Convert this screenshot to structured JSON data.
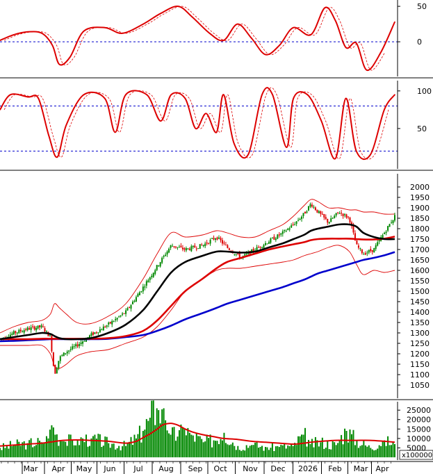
{
  "chart_data": [
    {
      "type": "line",
      "panel": "momentum-oscillator",
      "ylim": [
        -45,
        55
      ],
      "y_ticks": [
        "50",
        "0"
      ],
      "reference_lines": [
        0
      ],
      "colors": {
        "main": "#dd0000",
        "signal": "#dd0000",
        "reference": "#0000cc"
      },
      "x": [
        0,
        20,
        40,
        60,
        75,
        85,
        100,
        120,
        150,
        175,
        205,
        230,
        255,
        275,
        300,
        320,
        340,
        360,
        380,
        400,
        420,
        445,
        465,
        480,
        495,
        510,
        525,
        545,
        565
      ],
      "values": [
        2,
        10,
        14,
        12,
        -5,
        -32,
        -22,
        15,
        20,
        12,
        25,
        40,
        50,
        35,
        12,
        2,
        25,
        5,
        -18,
        -5,
        20,
        10,
        48,
        30,
        -8,
        -2,
        -40,
        -15,
        28
      ]
    },
    {
      "type": "line",
      "panel": "stochastic-oscillator",
      "ylim": [
        0,
        110
      ],
      "y_ticks": [
        "100",
        "50"
      ],
      "reference_lines": [
        80,
        20
      ],
      "colors": {
        "main": "#dd0000",
        "signal": "#dd0000",
        "reference": "#0000cc"
      },
      "x": [
        0,
        15,
        40,
        55,
        70,
        82,
        95,
        120,
        150,
        165,
        180,
        210,
        230,
        245,
        265,
        280,
        295,
        310,
        320,
        335,
        355,
        375,
        390,
        410,
        420,
        440,
        460,
        480,
        495,
        510,
        530,
        550,
        565
      ],
      "values": [
        75,
        95,
        92,
        90,
        40,
        12,
        55,
        95,
        90,
        45,
        95,
        95,
        60,
        95,
        90,
        50,
        70,
        45,
        95,
        30,
        15,
        95,
        95,
        25,
        90,
        95,
        60,
        10,
        90,
        20,
        15,
        75,
        95
      ]
    },
    {
      "type": "line",
      "panel": "price-with-moving-averages-and-bollinger-bands",
      "ylim": [
        1000,
        2050
      ],
      "y_ticks": [
        "2000",
        "1950",
        "1900",
        "1850",
        "1800",
        "1750",
        "1700",
        "1650",
        "1600",
        "1550",
        "1500",
        "1450",
        "1400",
        "1350",
        "1300",
        "1250",
        "1200",
        "1150",
        "1100",
        "1050"
      ],
      "x": [
        0,
        20,
        40,
        60,
        72,
        78,
        85,
        95,
        110,
        130,
        155,
        180,
        205,
        225,
        245,
        265,
        290,
        310,
        325,
        345,
        365,
        385,
        405,
        420,
        435,
        445,
        455,
        470,
        485,
        500,
        510,
        520,
        535,
        550,
        565
      ],
      "series": [
        {
          "role": "price",
          "color": "#008800",
          "values": [
            1270,
            1300,
            1320,
            1330,
            1280,
            1100,
            1180,
            1210,
            1240,
            1290,
            1340,
            1400,
            1520,
            1620,
            1720,
            1700,
            1720,
            1760,
            1710,
            1660,
            1700,
            1740,
            1780,
            1820,
            1870,
            1920,
            1880,
            1830,
            1880,
            1850,
            1720,
            1680,
            1700,
            1780,
            1860
          ]
        },
        {
          "role": "ma-short",
          "color": "#000000",
          "values": [
            1270,
            1280,
            1290,
            1300,
            1295,
            1285,
            1275,
            1270,
            1270,
            1275,
            1300,
            1340,
            1410,
            1500,
            1590,
            1640,
            1670,
            1690,
            1690,
            1685,
            1690,
            1710,
            1730,
            1750,
            1770,
            1790,
            1800,
            1810,
            1820,
            1820,
            1810,
            1780,
            1760,
            1750,
            1750
          ]
        },
        {
          "role": "ma-medium",
          "color": "#dd0000",
          "values": [
            1270,
            1270,
            1270,
            1272,
            1272,
            1272,
            1272,
            1272,
            1272,
            1272,
            1275,
            1285,
            1310,
            1360,
            1430,
            1500,
            1560,
            1610,
            1640,
            1660,
            1680,
            1700,
            1715,
            1725,
            1735,
            1745,
            1750,
            1752,
            1752,
            1752,
            1750,
            1748,
            1748,
            1752,
            1762
          ]
        },
        {
          "role": "ma-long",
          "color": "#0000cc",
          "values": [
            1260,
            1262,
            1265,
            1268,
            1270,
            1270,
            1270,
            1270,
            1270,
            1270,
            1272,
            1280,
            1290,
            1310,
            1335,
            1365,
            1395,
            1420,
            1440,
            1460,
            1480,
            1500,
            1520,
            1538,
            1555,
            1570,
            1585,
            1600,
            1615,
            1630,
            1640,
            1650,
            1660,
            1672,
            1688
          ]
        },
        {
          "role": "bollinger-upper",
          "color": "#dd0000",
          "values": [
            1300,
            1330,
            1350,
            1360,
            1390,
            1440,
            1420,
            1390,
            1350,
            1345,
            1380,
            1440,
            1560,
            1680,
            1780,
            1760,
            1770,
            1790,
            1780,
            1760,
            1760,
            1790,
            1820,
            1860,
            1910,
            1940,
            1930,
            1900,
            1900,
            1890,
            1890,
            1880,
            1880,
            1870,
            1870
          ]
        },
        {
          "role": "bollinger-lower",
          "color": "#dd0000",
          "values": [
            1240,
            1240,
            1240,
            1240,
            1200,
            1140,
            1130,
            1150,
            1190,
            1210,
            1220,
            1250,
            1280,
            1330,
            1410,
            1500,
            1560,
            1600,
            1610,
            1610,
            1620,
            1630,
            1640,
            1650,
            1670,
            1680,
            1690,
            1710,
            1720,
            1690,
            1630,
            1580,
            1600,
            1590,
            1600
          ]
        }
      ]
    },
    {
      "type": "bar",
      "panel": "volume",
      "ylim": [
        0,
        28000
      ],
      "y_ticks": [
        "25000",
        "20000",
        "15000",
        "10000",
        "5000"
      ],
      "unit_label": "x100000",
      "colors": {
        "bars": "#008800",
        "average": "#dd0000"
      },
      "x": [
        0,
        20,
        40,
        60,
        70,
        75,
        80,
        90,
        110,
        130,
        155,
        180,
        195,
        205,
        215,
        225,
        230,
        235,
        245,
        255,
        265,
        275,
        290,
        305,
        320,
        340,
        360,
        380,
        400,
        420,
        435,
        445,
        460,
        480,
        495,
        510,
        530,
        550,
        565
      ],
      "values": [
        5000,
        6500,
        7500,
        8000,
        10000,
        17000,
        12000,
        8500,
        9000,
        10000,
        7500,
        6000,
        10000,
        14000,
        21000,
        26000,
        18000,
        26000,
        12000,
        11000,
        15000,
        12000,
        8000,
        9000,
        13000,
        6000,
        6500,
        5500,
        5500,
        6000,
        12000,
        7000,
        8000,
        6500,
        14000,
        9000,
        5000,
        9000,
        7000
      ],
      "average_values": [
        6000,
        6500,
        7000,
        7500,
        8000,
        8200,
        8500,
        9000,
        9200,
        9000,
        8500,
        7500,
        8500,
        10500,
        12500,
        15000,
        16500,
        17500,
        18000,
        17000,
        15000,
        13500,
        12000,
        11000,
        10000,
        9500,
        8500,
        8000,
        7500,
        7000,
        7500,
        8000,
        8500,
        9000,
        9000,
        9000,
        9000,
        8500,
        8000
      ]
    }
  ],
  "time_axis": {
    "labels": [
      "Mar",
      "Apr",
      "May",
      "Jun",
      "Jul",
      "Aug",
      "Sep",
      "Oct",
      "Nov",
      "Dec",
      "2026",
      "Feb",
      "Mar",
      "Apr"
    ],
    "positions": [
      44,
      84,
      121,
      158,
      199,
      239,
      281,
      317,
      360,
      400,
      443,
      482,
      519,
      550
    ]
  }
}
